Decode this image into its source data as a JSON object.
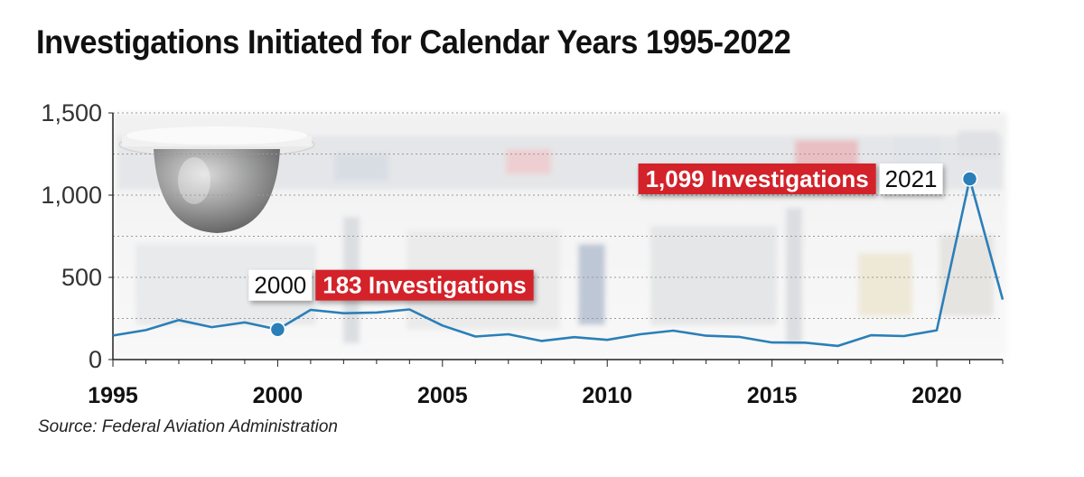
{
  "chart_data": {
    "type": "line",
    "title": "Investigations Initiated for Calendar Years 1995-2022",
    "xlabel": "",
    "ylabel": "",
    "x": [
      1995,
      1996,
      1997,
      1998,
      1999,
      2000,
      2001,
      2002,
      2003,
      2004,
      2005,
      2006,
      2007,
      2008,
      2009,
      2010,
      2011,
      2012,
      2013,
      2014,
      2015,
      2016,
      2017,
      2018,
      2019,
      2020,
      2021,
      2022
    ],
    "series": [
      {
        "name": "Investigations",
        "color": "#2a7fb8",
        "values": [
          146,
          179,
          240,
          197,
          226,
          183,
          302,
          282,
          286,
          305,
          207,
          140,
          154,
          113,
          136,
          120,
          154,
          176,
          145,
          138,
          104,
          103,
          83,
          148,
          143,
          178,
          1099,
          365
        ]
      }
    ],
    "ylim": [
      0,
      1500
    ],
    "yticks": [
      0,
      500,
      1000,
      1500
    ],
    "ytick_labels": [
      "0",
      "500",
      "1,000",
      "1,500"
    ],
    "xticks": [
      1995,
      2000,
      2005,
      2010,
      2015,
      2020
    ],
    "xtick_labels": [
      "1995",
      "2000",
      "2005",
      "2010",
      "2015",
      "2020"
    ],
    "xlim": [
      1995,
      2022
    ],
    "grid": true,
    "highlights": [
      {
        "year": 2000,
        "year_label": "2000",
        "value": 183,
        "value_label": "183 Investigations"
      },
      {
        "year": 2021,
        "year_label": "2021",
        "value": 1099,
        "value_label": "1,099 Investigations"
      }
    ],
    "source": "Source: Federal Aviation Administration"
  },
  "colors": {
    "line": "#2a7fb8",
    "badge": "#d3222a",
    "axis": "#222222"
  }
}
